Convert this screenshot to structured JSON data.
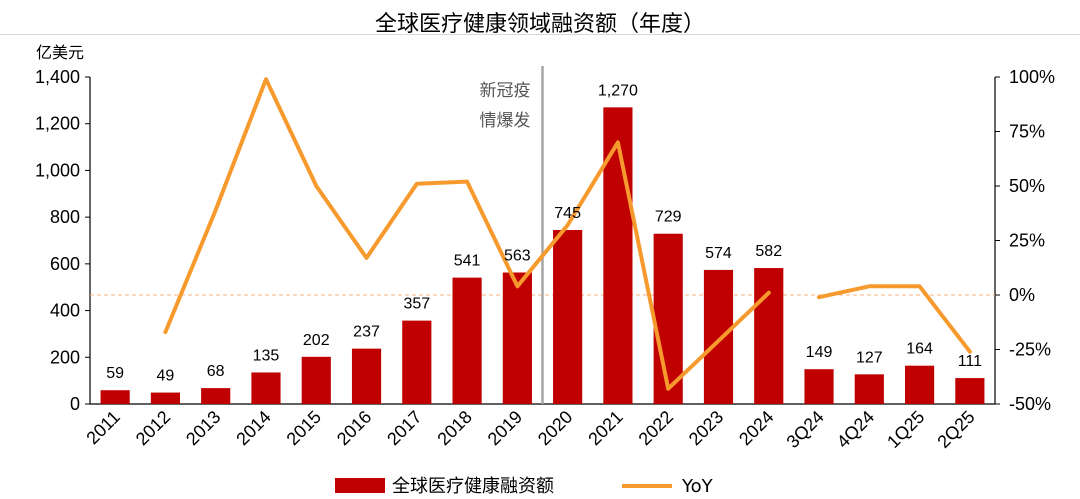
{
  "title": "全球医疗健康领域融资额（年度）",
  "chart_data": {
    "type": "bar",
    "title": "全球医疗健康领域融资额（年度）",
    "ylabel": "亿美元",
    "ylim": [
      0,
      1400
    ],
    "yticks": [
      "0",
      "200",
      "400",
      "600",
      "800",
      "1,000",
      "1,200",
      "1,400"
    ],
    "y2lim": [
      -50,
      100
    ],
    "y2ticks": [
      "-50%",
      "-25%",
      "0%",
      "25%",
      "50%",
      "75%",
      "100%"
    ],
    "categories": [
      "2011",
      "2012",
      "2013",
      "2014",
      "2015",
      "2016",
      "2017",
      "2018",
      "2019",
      "2020",
      "2021",
      "2022",
      "2023",
      "2024",
      "3Q24",
      "4Q24",
      "1Q25",
      "2Q25"
    ],
    "series": [
      {
        "name": "全球医疗健康融资额",
        "type": "bar",
        "color": "#c00000",
        "values": [
          59,
          49,
          68,
          135,
          202,
          237,
          357,
          541,
          563,
          745,
          1270,
          729,
          574,
          582,
          149,
          127,
          164,
          111
        ],
        "labels": [
          "59",
          "49",
          "68",
          "135",
          "202",
          "237",
          "357",
          "541",
          "563",
          "745",
          "1,270",
          "729",
          "574",
          "582",
          "149",
          "127",
          "164",
          "111"
        ]
      },
      {
        "name": "YoY",
        "type": "line",
        "color": "#f79a2e",
        "axis": "right",
        "values": [
          null,
          -17,
          39,
          99,
          50,
          17,
          51,
          52,
          4,
          32,
          70,
          -43,
          -21,
          1,
          -1,
          4,
          4,
          -26
        ]
      }
    ],
    "annotation": {
      "text_lines": [
        "新冠疫",
        "情爆发"
      ],
      "between": [
        "2019",
        "2020"
      ]
    },
    "zero_line_color": "#f4b183",
    "legend": {
      "position": "bottom"
    }
  }
}
